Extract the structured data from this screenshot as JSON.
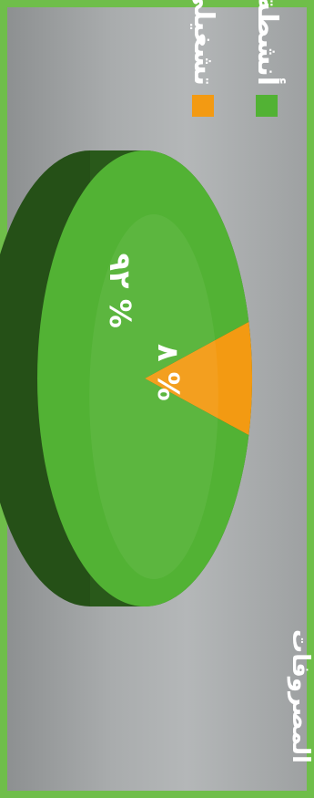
{
  "chart_data": {
    "type": "pie",
    "title": "المصروفات",
    "categories": [
      "تشغيلي",
      "أنشطة"
    ],
    "values": [
      8,
      92
    ],
    "value_labels": [
      "٨ %",
      "٩٢ %"
    ],
    "colors": [
      "#f39a12",
      "#52b234"
    ],
    "legend": [
      "تشغيلي",
      "أنشطة"
    ],
    "legend_placement": "top"
  }
}
